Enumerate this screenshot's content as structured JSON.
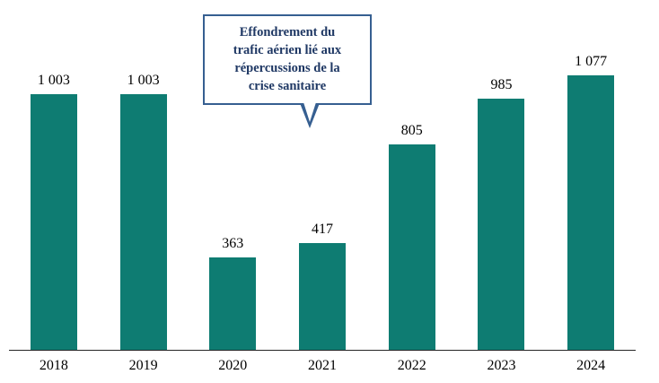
{
  "chart_data": {
    "type": "bar",
    "title": "",
    "xlabel": "",
    "ylabel": "",
    "categories": [
      "2018",
      "2019",
      "2020",
      "2021",
      "2022",
      "2023",
      "2024"
    ],
    "values": [
      1003,
      1003,
      363,
      417,
      805,
      985,
      1077
    ],
    "value_labels": [
      "1 003",
      "1 003",
      "363",
      "417",
      "805",
      "985",
      "1 077"
    ],
    "ylim": [
      0,
      1160
    ],
    "grid": false,
    "legend": "none",
    "bar_color": "#0e7c72",
    "axis_color": "#262626",
    "annotation": {
      "text": "Effondrement du trafic aérien lié aux répercussions de la crise sanitaire",
      "lines": [
        "Effondrement du",
        "trafic aérien lié aux",
        "répercussions de la",
        "crise sanitaire"
      ],
      "border_color": "#365f91",
      "text_color": "#1f3864",
      "points_to": "2021"
    }
  }
}
